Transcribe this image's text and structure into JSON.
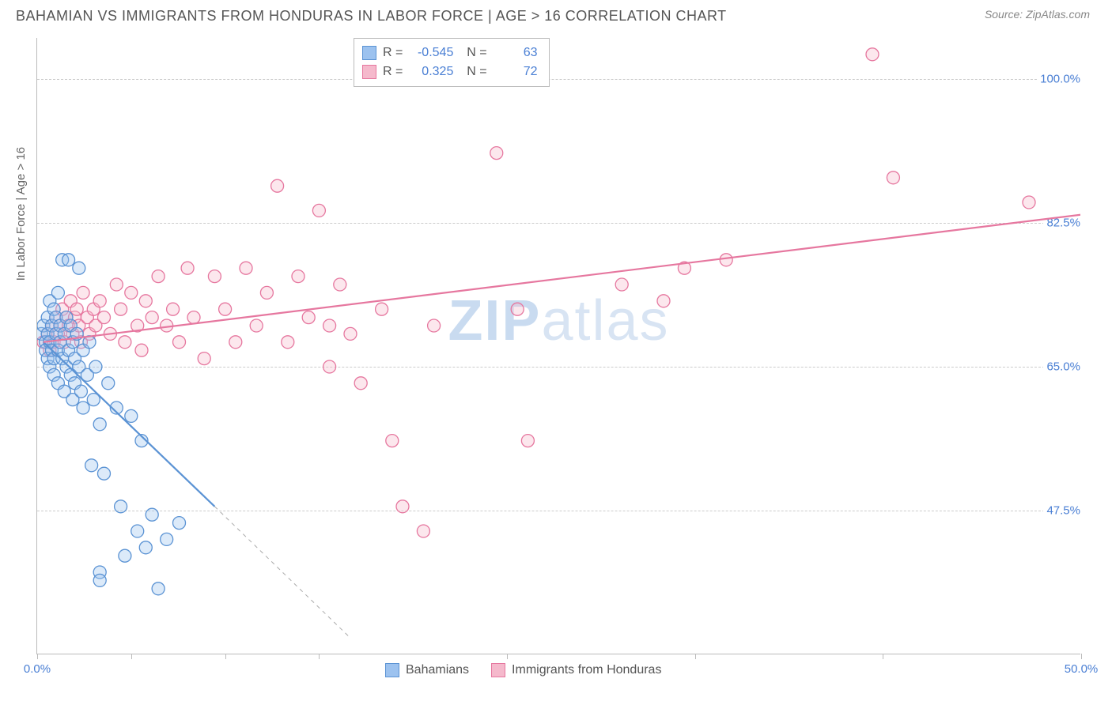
{
  "title": "BAHAMIAN VS IMMIGRANTS FROM HONDURAS IN LABOR FORCE | AGE > 16 CORRELATION CHART",
  "source": "Source: ZipAtlas.com",
  "ylabel": "In Labor Force | Age > 16",
  "watermark_bold": "ZIP",
  "watermark_light": "atlas",
  "chart": {
    "type": "scatter",
    "background_color": "#ffffff",
    "grid_color": "#cccccc",
    "axis_color": "#bbbbbb",
    "label_color": "#4a7fd4",
    "xlim": [
      0,
      50
    ],
    "ylim": [
      30,
      105
    ],
    "xtick_positions": [
      0,
      4.5,
      9,
      13.5,
      22.5,
      31.5,
      40.5,
      50
    ],
    "xtick_labels": {
      "0": "0.0%",
      "50": "50.0%"
    },
    "ytick_positions": [
      47.5,
      65.0,
      82.5,
      100.0
    ],
    "ytick_labels": [
      "47.5%",
      "65.0%",
      "82.5%",
      "100.0%"
    ],
    "marker_radius": 8,
    "marker_fill_opacity": 0.35,
    "marker_stroke_width": 1.3,
    "line_width": 2.2
  },
  "series_a": {
    "name": "Bahamians",
    "color_fill": "#9cc2ef",
    "color_stroke": "#5b93d4",
    "R": "-0.545",
    "N": "63",
    "trend": {
      "x1": 0.3,
      "y1": 68,
      "x2": 8.5,
      "y2": 48
    },
    "trend_ext": {
      "x1": 8.5,
      "y1": 48,
      "x2": 15,
      "y2": 32
    },
    "points": [
      [
        0.2,
        69
      ],
      [
        0.3,
        70
      ],
      [
        0.4,
        68
      ],
      [
        0.4,
        67
      ],
      [
        0.5,
        71
      ],
      [
        0.5,
        66
      ],
      [
        0.5,
        69
      ],
      [
        0.6,
        73
      ],
      [
        0.6,
        65
      ],
      [
        0.6,
        68
      ],
      [
        0.7,
        70
      ],
      [
        0.7,
        67
      ],
      [
        0.8,
        66
      ],
      [
        0.8,
        72
      ],
      [
        0.8,
        64
      ],
      [
        0.9,
        69
      ],
      [
        0.9,
        71
      ],
      [
        1.0,
        67
      ],
      [
        1.0,
        74
      ],
      [
        1.0,
        63
      ],
      [
        1.1,
        70
      ],
      [
        1.1,
        68
      ],
      [
        1.2,
        78
      ],
      [
        1.2,
        66
      ],
      [
        1.3,
        69
      ],
      [
        1.3,
        62
      ],
      [
        1.4,
        71
      ],
      [
        1.4,
        65
      ],
      [
        1.5,
        67
      ],
      [
        1.5,
        78
      ],
      [
        1.6,
        64
      ],
      [
        1.6,
        70
      ],
      [
        1.7,
        68
      ],
      [
        1.7,
        61
      ],
      [
        1.8,
        66
      ],
      [
        1.8,
        63
      ],
      [
        1.9,
        69
      ],
      [
        2.0,
        65
      ],
      [
        2.0,
        77
      ],
      [
        2.1,
        62
      ],
      [
        2.2,
        67
      ],
      [
        2.2,
        60
      ],
      [
        2.4,
        64
      ],
      [
        2.5,
        68
      ],
      [
        2.6,
        53
      ],
      [
        2.7,
        61
      ],
      [
        2.8,
        65
      ],
      [
        3.0,
        58
      ],
      [
        3.2,
        52
      ],
      [
        3.4,
        63
      ],
      [
        3.8,
        60
      ],
      [
        4.0,
        48
      ],
      [
        4.5,
        59
      ],
      [
        4.8,
        45
      ],
      [
        5.0,
        56
      ],
      [
        5.2,
        43
      ],
      [
        5.5,
        47
      ],
      [
        3.0,
        40
      ],
      [
        4.2,
        42
      ],
      [
        5.8,
        38
      ],
      [
        6.2,
        44
      ],
      [
        6.8,
        46
      ],
      [
        3.0,
        39
      ]
    ]
  },
  "series_b": {
    "name": "Immigrants from Honduras",
    "color_fill": "#f5b9cc",
    "color_stroke": "#e6779f",
    "R": "0.325",
    "N": "72",
    "trend": {
      "x1": 0.3,
      "y1": 68,
      "x2": 50,
      "y2": 83.5
    },
    "points": [
      [
        0.3,
        68
      ],
      [
        0.5,
        69
      ],
      [
        0.6,
        67
      ],
      [
        0.7,
        70
      ],
      [
        0.8,
        68
      ],
      [
        0.9,
        71
      ],
      [
        1.0,
        69
      ],
      [
        1.1,
        70
      ],
      [
        1.2,
        72
      ],
      [
        1.3,
        68
      ],
      [
        1.4,
        71
      ],
      [
        1.5,
        70
      ],
      [
        1.6,
        73
      ],
      [
        1.7,
        69
      ],
      [
        1.8,
        71
      ],
      [
        1.9,
        72
      ],
      [
        2.0,
        70
      ],
      [
        2.1,
        68
      ],
      [
        2.2,
        74
      ],
      [
        2.4,
        71
      ],
      [
        2.5,
        69
      ],
      [
        2.7,
        72
      ],
      [
        2.8,
        70
      ],
      [
        3.0,
        73
      ],
      [
        3.2,
        71
      ],
      [
        3.5,
        69
      ],
      [
        3.8,
        75
      ],
      [
        4.0,
        72
      ],
      [
        4.2,
        68
      ],
      [
        4.5,
        74
      ],
      [
        4.8,
        70
      ],
      [
        5.0,
        67
      ],
      [
        5.2,
        73
      ],
      [
        5.5,
        71
      ],
      [
        5.8,
        76
      ],
      [
        6.2,
        70
      ],
      [
        6.5,
        72
      ],
      [
        6.8,
        68
      ],
      [
        7.2,
        77
      ],
      [
        7.5,
        71
      ],
      [
        8.0,
        66
      ],
      [
        8.5,
        76
      ],
      [
        9.0,
        72
      ],
      [
        9.5,
        68
      ],
      [
        10.0,
        77
      ],
      [
        10.5,
        70
      ],
      [
        11.0,
        74
      ],
      [
        11.5,
        87
      ],
      [
        12.0,
        68
      ],
      [
        12.5,
        76
      ],
      [
        13.0,
        71
      ],
      [
        13.5,
        84
      ],
      [
        14.0,
        65
      ],
      [
        14.5,
        75
      ],
      [
        15.0,
        69
      ],
      [
        15.5,
        63
      ],
      [
        16.5,
        72
      ],
      [
        17.0,
        56
      ],
      [
        17.5,
        48
      ],
      [
        18.5,
        45
      ],
      [
        22.0,
        91
      ],
      [
        23.5,
        56
      ],
      [
        23.0,
        72
      ],
      [
        28.0,
        75
      ],
      [
        30.0,
        73
      ],
      [
        31.0,
        77
      ],
      [
        40.0,
        103
      ],
      [
        41.0,
        88
      ],
      [
        47.5,
        85
      ],
      [
        33.0,
        78
      ],
      [
        19,
        70
      ],
      [
        14,
        70
      ]
    ]
  },
  "legend_bottom": [
    {
      "key": "series_a"
    },
    {
      "key": "series_b"
    }
  ]
}
